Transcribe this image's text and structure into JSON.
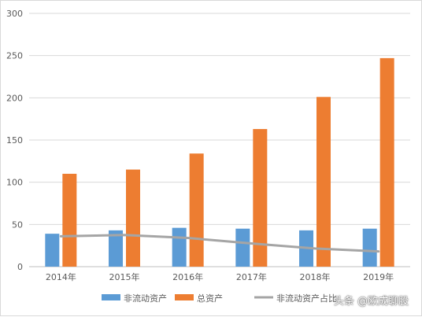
{
  "chart_data": {
    "type": "bar",
    "categories": [
      "2014年",
      "2015年",
      "2016年",
      "2017年",
      "2018年",
      "2019年"
    ],
    "ylim": [
      0,
      300
    ],
    "yticks": [
      0,
      50,
      100,
      150,
      200,
      250,
      300
    ],
    "grid": true,
    "legend_position": "bottom",
    "series": [
      {
        "name": "非流动资产",
        "type": "bar",
        "color": "#5b9bd5",
        "values": [
          39,
          43,
          46,
          45,
          43,
          45
        ]
      },
      {
        "name": "总资产",
        "type": "bar",
        "color": "#ed7d31",
        "values": [
          110,
          115,
          134,
          163,
          201,
          247
        ]
      },
      {
        "name": "非流动资产占比",
        "type": "line",
        "color": "#a5a5a5",
        "values": [
          36,
          37.5,
          34,
          27.5,
          21.5,
          18
        ]
      }
    ]
  },
  "watermark": "头条 @欧成聊股"
}
